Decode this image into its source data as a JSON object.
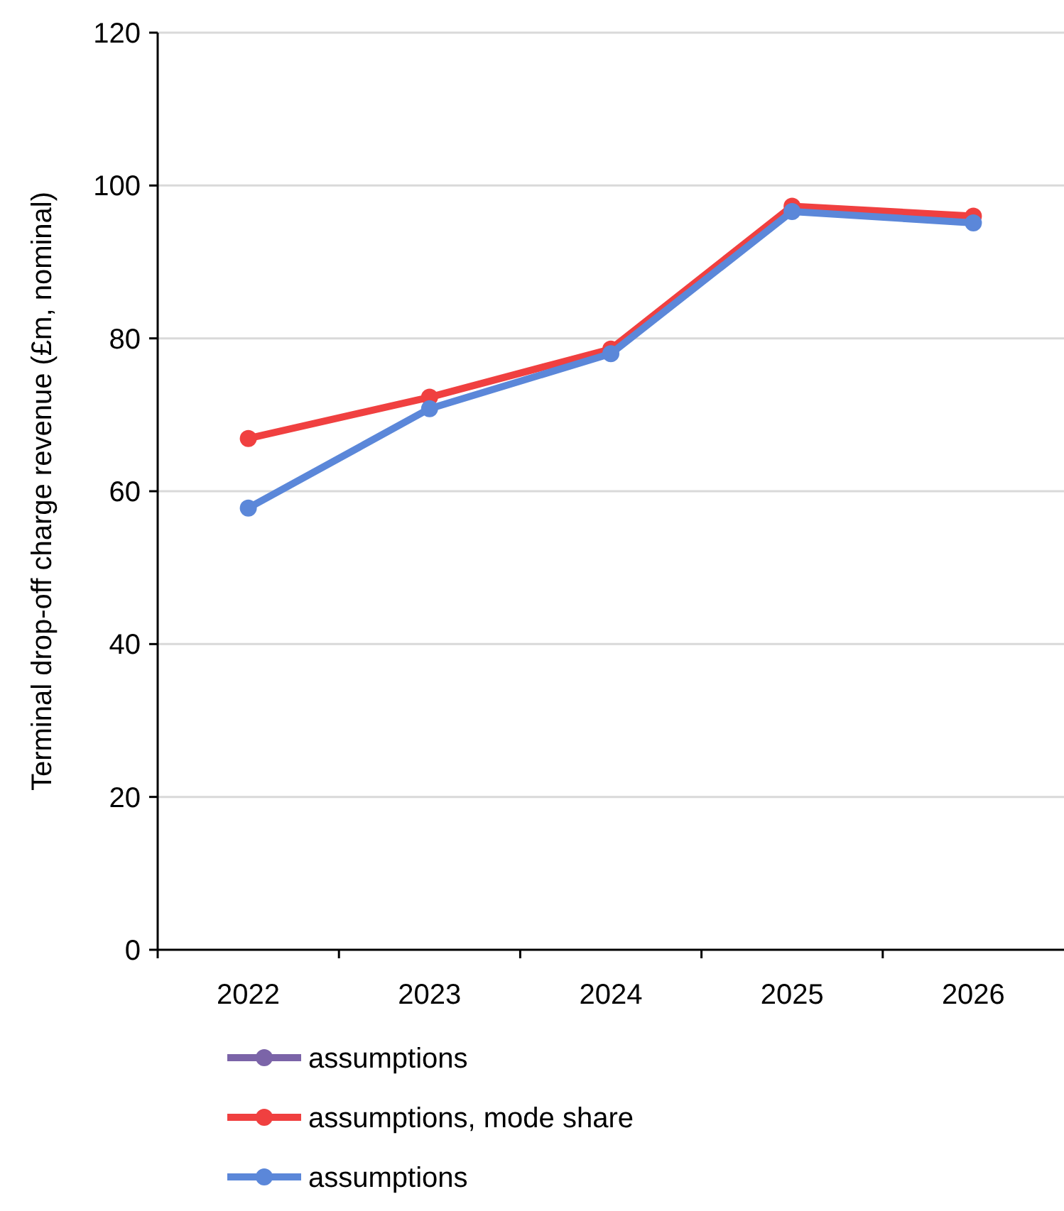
{
  "chart_data": {
    "type": "line",
    "ylabel": "Terminal drop-off charge revenue (£m, nominal)",
    "categories": [
      "2022",
      "2023",
      "2024",
      "2025",
      "2026"
    ],
    "series": [
      {
        "name": "assumptions",
        "color": "#7b64a8",
        "values": [
          null,
          null,
          null,
          null,
          null
        ]
      },
      {
        "name": "assumptions, mode share",
        "color": "#f04040",
        "values": [
          66.9,
          72.3,
          78.6,
          97.3,
          96.0
        ]
      },
      {
        "name": "assumptions",
        "color": "#5b87d9",
        "values": [
          57.8,
          70.8,
          78.0,
          96.6,
          95.1
        ]
      }
    ],
    "ylim": [
      0,
      120
    ],
    "yticks": [
      0,
      20,
      40,
      60,
      80,
      100,
      120
    ],
    "grid": "y",
    "legend": "bottom",
    "marker": "circle",
    "line_style": "solid"
  }
}
